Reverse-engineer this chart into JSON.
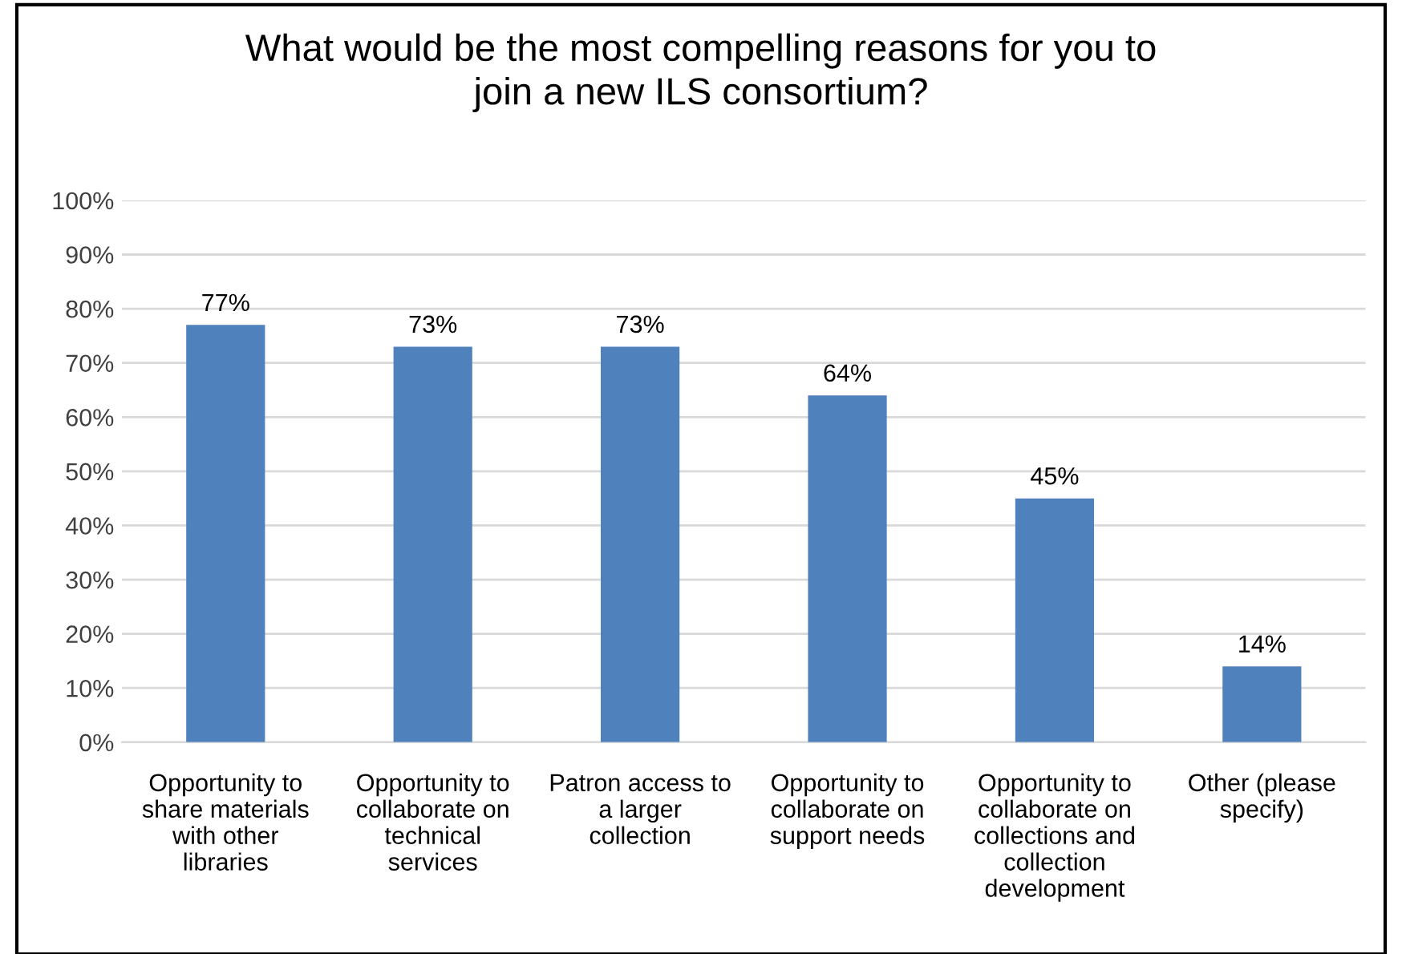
{
  "chart_data": {
    "type": "bar",
    "title": "What would be the most compelling reasons for you to\njoin a new ILS consortium?",
    "categories": [
      "Opportunity to\nshare materials\nwith other\nlibraries",
      "Opportunity to\ncollaborate on\ntechnical\nservices",
      "Patron access to\na larger\ncollection",
      "Opportunity to\ncollaborate on\nsupport needs",
      "Opportunity to\ncollaborate on\ncollections and\ncollection\ndevelopment",
      "Other (please\nspecify)"
    ],
    "values": [
      77,
      73,
      73,
      64,
      45,
      14
    ],
    "value_labels": [
      "77%",
      "73%",
      "73%",
      "64%",
      "45%",
      "14%"
    ],
    "color": "#4f81bd",
    "ylim": [
      0,
      100
    ],
    "yticks": [
      {
        "value": 0,
        "label": "0%"
      },
      {
        "value": 10,
        "label": "10%"
      },
      {
        "value": 20,
        "label": "20%"
      },
      {
        "value": 30,
        "label": "30%"
      },
      {
        "value": 40,
        "label": "40%"
      },
      {
        "value": 50,
        "label": "50%"
      },
      {
        "value": 60,
        "label": "60%"
      },
      {
        "value": 70,
        "label": "70%"
      },
      {
        "value": 80,
        "label": "80%"
      },
      {
        "value": 90,
        "label": "90%"
      },
      {
        "value": 100,
        "label": "100%"
      }
    ],
    "grid": "y"
  }
}
